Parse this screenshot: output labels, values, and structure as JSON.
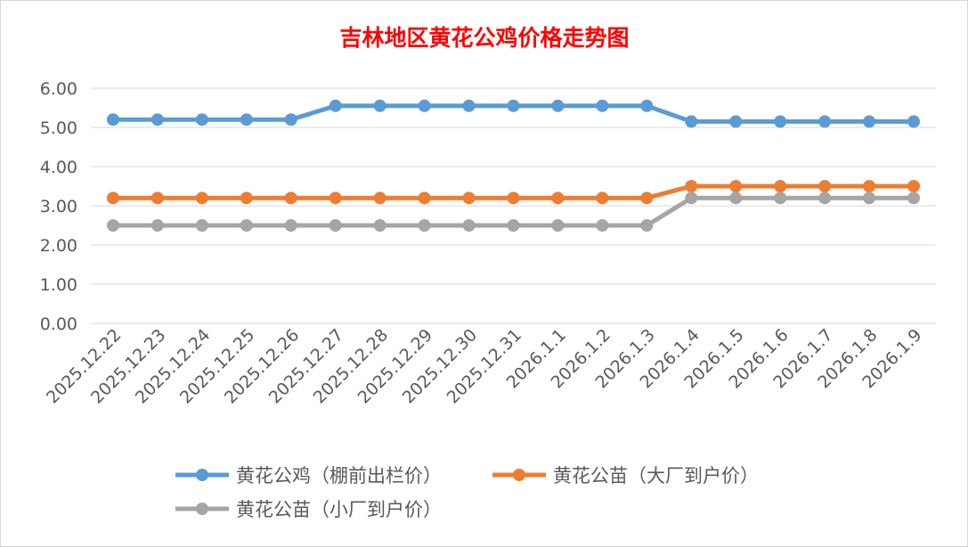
{
  "chart_data": {
    "type": "line",
    "title": "吉林地区黄花公鸡价格走势图",
    "xlabel": "",
    "ylabel": "",
    "ylim": [
      0,
      6
    ],
    "yticks": [
      "0.00",
      "1.00",
      "2.00",
      "3.00",
      "4.00",
      "5.00",
      "6.00"
    ],
    "grid": true,
    "legend_position": "bottom",
    "categories": [
      "2025.12.22",
      "2025.12.23",
      "2025.12.24",
      "2025.12.25",
      "2025.12.26",
      "2025.12.27",
      "2025.12.28",
      "2025.12.29",
      "2025.12.30",
      "2025.12.31",
      "2026.1.1",
      "2026.1.2",
      "2026.1.3",
      "2026.1.4",
      "2026.1.5",
      "2026.1.6",
      "2026.1.7",
      "2026.1.8",
      "2026.1.9"
    ],
    "series": [
      {
        "name": "黄花公鸡（棚前出栏价）",
        "color": "#5b9bd5",
        "values": [
          5.2,
          5.2,
          5.2,
          5.2,
          5.2,
          5.55,
          5.55,
          5.55,
          5.55,
          5.55,
          5.55,
          5.55,
          5.55,
          5.15,
          5.15,
          5.15,
          5.15,
          5.15,
          5.15
        ]
      },
      {
        "name": "黄花公苗（大厂到户价）",
        "color": "#ed7d31",
        "values": [
          3.2,
          3.2,
          3.2,
          3.2,
          3.2,
          3.2,
          3.2,
          3.2,
          3.2,
          3.2,
          3.2,
          3.2,
          3.2,
          3.5,
          3.5,
          3.5,
          3.5,
          3.5,
          3.5
        ]
      },
      {
        "name": "黄花公苗（小厂到户价）",
        "color": "#a5a5a5",
        "values": [
          2.5,
          2.5,
          2.5,
          2.5,
          2.5,
          2.5,
          2.5,
          2.5,
          2.5,
          2.5,
          2.5,
          2.5,
          2.5,
          3.2,
          3.2,
          3.2,
          3.2,
          3.2,
          3.2
        ]
      }
    ]
  }
}
